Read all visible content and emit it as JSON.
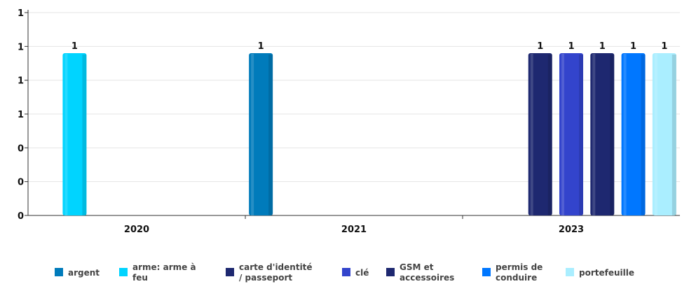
{
  "chart_data": {
    "type": "bar",
    "categories": [
      "2020",
      "2021",
      "2023"
    ],
    "y_tick_labels": [
      "0",
      "0",
      "0",
      "1",
      "1",
      "1",
      "1"
    ],
    "ylim": [
      0,
      1.25
    ],
    "grid": true,
    "legend_position": "bottom",
    "series": [
      {
        "name": "argent",
        "color": "#007bbb",
        "values": [
          null,
          1,
          null
        ]
      },
      {
        "name": "arme: arme à feu",
        "color": "#00d4ff",
        "values": [
          1,
          null,
          null
        ]
      },
      {
        "name": "carte d'identité / passeport",
        "color": "#1e2870",
        "values": [
          null,
          null,
          1
        ]
      },
      {
        "name": "clé",
        "color": "#3344cc",
        "values": [
          null,
          null,
          1
        ]
      },
      {
        "name": "GSM et accessoires",
        "color": "#1e2870",
        "values": [
          null,
          null,
          1
        ]
      },
      {
        "name": "permis de conduire",
        "color": "#0077ff",
        "values": [
          null,
          null,
          1
        ]
      },
      {
        "name": "portefeuille",
        "color": "#aaeeff",
        "values": [
          null,
          null,
          1
        ]
      }
    ],
    "data_labels": [
      "1",
      "1",
      "1",
      "1",
      "1",
      "1",
      "1"
    ]
  }
}
